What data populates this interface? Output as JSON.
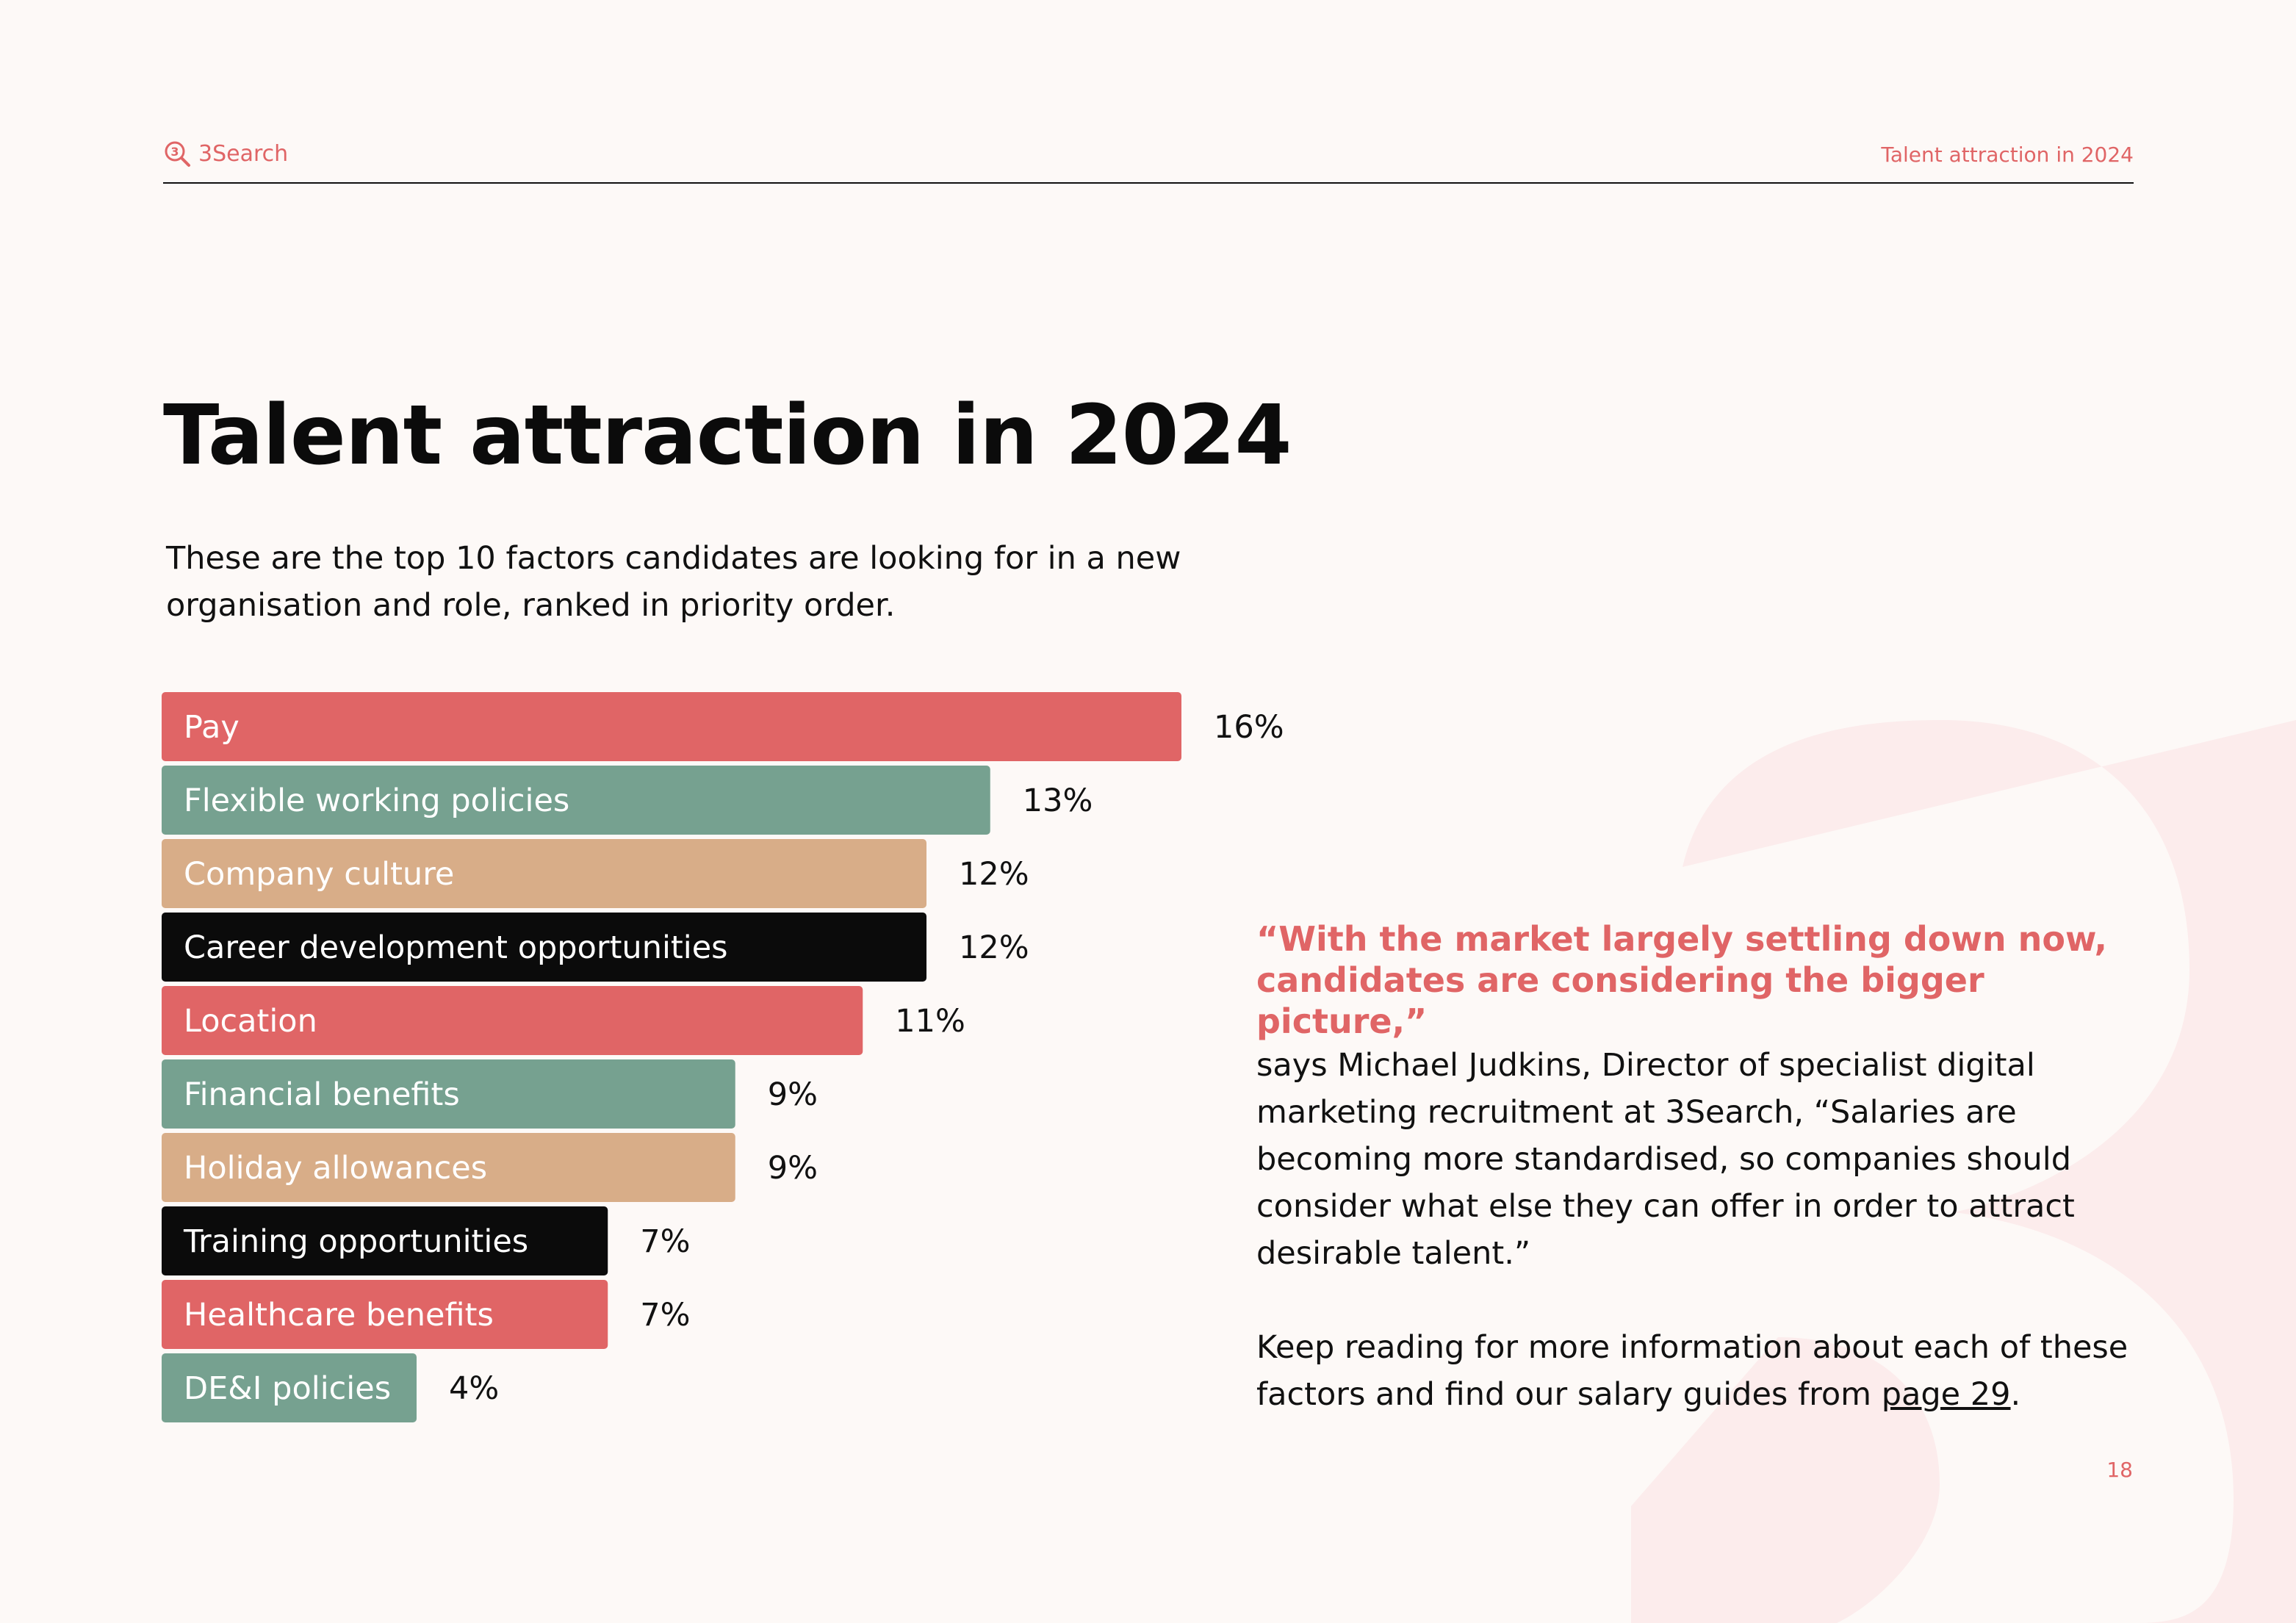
{
  "header": {
    "brand": "3Search",
    "section_title": "Talent attraction in 2024"
  },
  "page_title": "Talent attraction in 2024",
  "subtitle": "These are the top 10 factors candidates are looking for in a new organisation and role, ranked in priority order.",
  "chart_data": {
    "type": "bar",
    "orientation": "horizontal",
    "title": "",
    "xlabel": "",
    "ylabel": "",
    "xlim": [
      0,
      16
    ],
    "grid": false,
    "categories": [
      "Pay",
      "Flexible working policies",
      "Company culture",
      "Career development opportunities",
      "Location",
      "Financial benefits",
      "Holiday allowances",
      "Training opportunities",
      "Healthcare benefits",
      "DE&I policies"
    ],
    "values": [
      16,
      13,
      12,
      12,
      11,
      9,
      9,
      7,
      7,
      4
    ],
    "value_labels": [
      "16%",
      "13%",
      "12%",
      "12%",
      "11%",
      "9%",
      "9%",
      "7%",
      "7%",
      "4%"
    ],
    "colors": [
      "#e06566",
      "#76a190",
      "#d8ad88",
      "#0b0b0b",
      "#e06566",
      "#76a190",
      "#d8ad88",
      "#0b0b0b",
      "#e06566",
      "#76a190"
    ]
  },
  "quote": {
    "highlight": "“With the market largely settling down now, candidates are considering the bigger picture,”",
    "body": " says Michael Judkins, Director of specialist digital marketing recruitment at 3Search, “Salaries are becoming more standardised, so companies should consider what else they can offer in order to attract desirable talent.”",
    "cta_before": "Keep reading for more information about each of these factors and find our salary guides from ",
    "cta_link": "page 29",
    "cta_after": "."
  },
  "page_number": "18",
  "colors": {
    "accent": "#e06566",
    "green": "#76a190",
    "tan": "#d8ad88",
    "black": "#0b0b0b",
    "background": "#fdf9f7"
  }
}
